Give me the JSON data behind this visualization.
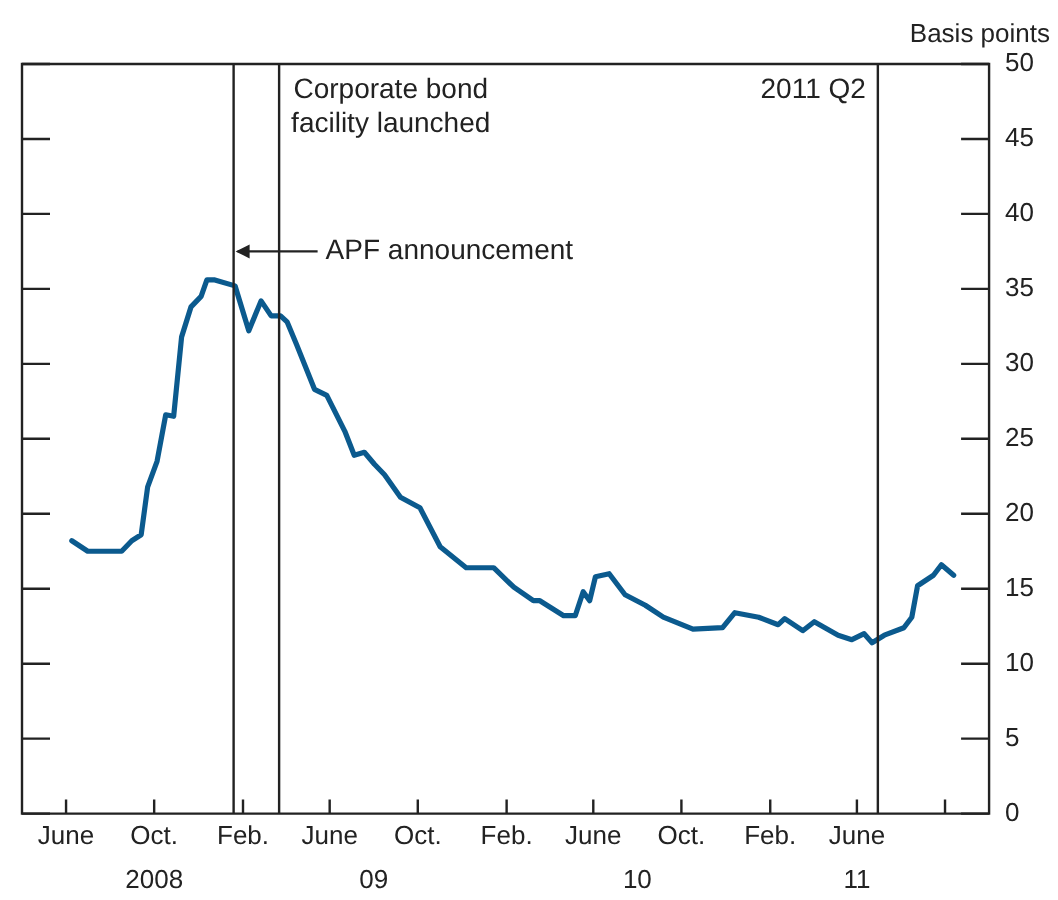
{
  "chart_data": {
    "type": "line",
    "ylabel": "Basis points",
    "x": [
      "2008-06-09",
      "2008-07-01",
      "2008-08-17",
      "2008-08-31",
      "2008-09-13",
      "2008-09-22",
      "2008-10-05",
      "2008-10-17",
      "2008-10-28",
      "2008-11-08",
      "2008-11-21",
      "2008-12-05",
      "2008-12-13",
      "2008-12-24",
      "2009-01-21",
      "2009-02-09",
      "2009-02-26",
      "2009-03-12",
      "2009-03-25",
      "2009-04-03",
      "2009-04-16",
      "2009-05-11",
      "2009-05-28",
      "2009-06-22",
      "2009-07-05",
      "2009-07-19",
      "2009-08-02",
      "2009-08-16",
      "2009-09-07",
      "2009-10-04",
      "2009-11-01",
      "2009-12-07",
      "2010-01-14",
      "2010-02-11",
      "2010-03-10",
      "2010-03-19",
      "2010-04-21",
      "2010-05-07",
      "2010-05-18",
      "2010-05-27",
      "2010-06-04",
      "2010-06-23",
      "2010-07-15",
      "2010-08-12",
      "2010-09-06",
      "2010-10-17",
      "2010-11-27",
      "2010-12-14",
      "2011-01-16",
      "2011-02-12",
      "2011-02-21",
      "2011-03-18",
      "2011-04-03",
      "2011-05-06",
      "2011-05-25",
      "2011-06-11",
      "2011-06-22",
      "2011-07-09",
      "2011-08-05",
      "2011-08-16",
      "2011-08-24",
      "2011-09-15",
      "2011-09-26",
      "2011-10-13"
    ],
    "series": [
      {
        "color": "#0b5a8e",
        "values": [
          18.2,
          17.5,
          17.5,
          18.2,
          18.6,
          21.8,
          23.5,
          26.6,
          26.5,
          31.8,
          33.8,
          34.5,
          35.6,
          35.6,
          35.2,
          32.2,
          34.2,
          33.2,
          33.2,
          32.8,
          31.3,
          28.3,
          27.9,
          25.5,
          23.9,
          24.1,
          23.3,
          22.6,
          21.1,
          20.4,
          17.8,
          16.4,
          16.4,
          15.1,
          14.2,
          14.2,
          13.2,
          13.2,
          14.8,
          14.2,
          15.8,
          16.0,
          14.6,
          13.9,
          13.1,
          12.3,
          12.4,
          13.4,
          13.1,
          12.6,
          13.0,
          12.2,
          12.8,
          11.9,
          11.6,
          12.0,
          11.4,
          11.9,
          12.4,
          13.1,
          15.2,
          15.9,
          16.6,
          15.9
        ]
      }
    ],
    "xlim": [
      "2008-04-01",
      "2011-12-01"
    ],
    "xticks": [
      {
        "value": "2008-06-01",
        "label": "June"
      },
      {
        "value": "2008-10-01",
        "label": "Oct."
      },
      {
        "value": "2009-02-01",
        "label": "Feb."
      },
      {
        "value": "2009-06-01",
        "label": "June"
      },
      {
        "value": "2009-10-01",
        "label": "Oct."
      },
      {
        "value": "2010-02-01",
        "label": "Feb."
      },
      {
        "value": "2010-06-01",
        "label": "June"
      },
      {
        "value": "2010-10-01",
        "label": "Oct."
      },
      {
        "value": "2011-02-01",
        "label": "Feb."
      },
      {
        "value": "2011-06-01",
        "label": "June"
      },
      {
        "value": "2011-10-01",
        "label": null
      }
    ],
    "x2lim": [
      "2008-04-01",
      "2011-12-01"
    ],
    "x2ticks": [
      {
        "value": "2008-10-01",
        "label": "2008"
      },
      {
        "value": "2009-08-01",
        "label": "09"
      },
      {
        "value": "2010-08-01",
        "label": "10"
      },
      {
        "value": "2011-06-01",
        "label": "11"
      }
    ],
    "ylim": [
      0,
      50
    ],
    "yticks": [
      0,
      5,
      10,
      15,
      20,
      25,
      30,
      35,
      40,
      45,
      50
    ],
    "grid": false,
    "legend": false,
    "marker": "none",
    "line_style": "solid",
    "ref_lines": [
      {
        "axis": "x",
        "value": "2009-01-19",
        "color": "#222222"
      },
      {
        "axis": "x",
        "value": "2009-03-23",
        "label": "Corporate bond\nfacility launched",
        "color": "#222222"
      },
      {
        "axis": "x",
        "value": "2011-06-30",
        "label": "2011 Q2",
        "color": "#222222"
      }
    ],
    "annotations": [
      {
        "text": "APF announcement",
        "x": "2009-01-19",
        "y": 37.5
      }
    ]
  }
}
